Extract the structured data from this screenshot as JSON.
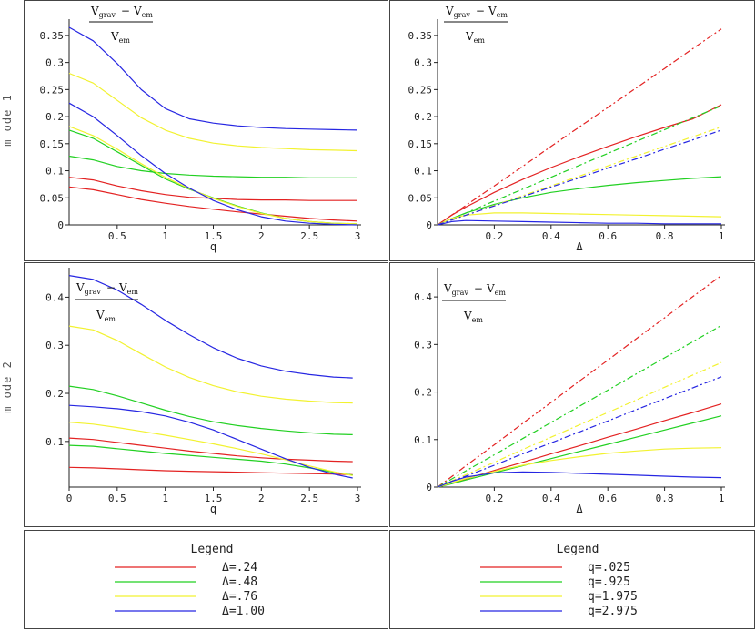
{
  "colors": {
    "d024": "#e32222",
    "d048": "#22d022",
    "d076": "#f2f230",
    "d100": "#2626e2"
  },
  "row_labels": [
    "m ode 1",
    "m ode 2"
  ],
  "ratio_label": {
    "num_a": "V",
    "num_a_sub": "grav",
    "minus": "−",
    "num_b": "V",
    "num_b_sub": "em",
    "den": "V",
    "den_sub": "em"
  },
  "chart_data": [
    {
      "id": "mode1-q",
      "type": "line",
      "title": "",
      "xlabel": "q",
      "ylabel": "(Vgrav − Vem)/Vem",
      "xlim": [
        0,
        3
      ],
      "ylim": [
        0,
        0.37
      ],
      "xticks": [
        0.5,
        1,
        1.5,
        2,
        2.5,
        3
      ],
      "xtick_labels": [
        "0.5",
        "1",
        "1.5",
        "2",
        "2.5",
        "3"
      ],
      "yticks": [
        0,
        0.05,
        0.1,
        0.15,
        0.2,
        0.25,
        0.3,
        0.35
      ],
      "ytick_labels": [
        "0",
        "0.05",
        "0.1",
        "0.15",
        "0.2",
        "0.25",
        "0.3",
        "0.35"
      ],
      "x": [
        0,
        0.25,
        0.5,
        0.75,
        1,
        1.25,
        1.5,
        1.75,
        2,
        2.25,
        2.5,
        2.75,
        3
      ],
      "series": [
        {
          "name": "Δ=.24 upper",
          "color_key": "d024",
          "values": [
            0.088,
            0.083,
            0.072,
            0.063,
            0.056,
            0.051,
            0.049,
            0.047,
            0.046,
            0.046,
            0.045,
            0.045,
            0.045
          ]
        },
        {
          "name": "Δ=.24 lower",
          "color_key": "d024",
          "values": [
            0.07,
            0.065,
            0.056,
            0.047,
            0.04,
            0.034,
            0.029,
            0.024,
            0.02,
            0.016,
            0.012,
            0.009,
            0.007
          ]
        },
        {
          "name": "Δ=.48 upper",
          "color_key": "d048",
          "values": [
            0.127,
            0.12,
            0.108,
            0.1,
            0.095,
            0.092,
            0.09,
            0.089,
            0.088,
            0.088,
            0.087,
            0.087,
            0.087
          ]
        },
        {
          "name": "Δ=.48 lower",
          "color_key": "d048",
          "values": [
            0.175,
            0.16,
            0.135,
            0.11,
            0.085,
            0.066,
            0.05,
            0.035,
            0.022,
            0.012,
            0.006,
            0.003,
            0.002
          ]
        },
        {
          "name": "Δ=.76 upper",
          "color_key": "d076",
          "values": [
            0.28,
            0.262,
            0.23,
            0.198,
            0.175,
            0.16,
            0.151,
            0.146,
            0.143,
            0.141,
            0.139,
            0.138,
            0.137
          ]
        },
        {
          "name": "Δ=.76 lower",
          "color_key": "d076",
          "values": [
            0.182,
            0.165,
            0.14,
            0.113,
            0.088,
            0.067,
            0.049,
            0.034,
            0.021,
            0.012,
            0.006,
            0.003,
            0.002
          ]
        },
        {
          "name": "Δ=1.00 upper",
          "color_key": "d100",
          "values": [
            0.365,
            0.34,
            0.298,
            0.25,
            0.215,
            0.196,
            0.188,
            0.183,
            0.18,
            0.178,
            0.177,
            0.176,
            0.175
          ]
        },
        {
          "name": "Δ=1.00 lower",
          "color_key": "d100",
          "values": [
            0.225,
            0.2,
            0.165,
            0.128,
            0.095,
            0.068,
            0.045,
            0.028,
            0.015,
            0.007,
            0.003,
            0.001,
            0
          ]
        }
      ]
    },
    {
      "id": "mode1-delta",
      "type": "line",
      "title": "",
      "xlabel": "Δ",
      "ylabel": "(Vgrav − Vem)/Vem",
      "xlim": [
        0,
        1
      ],
      "ylim": [
        0,
        0.37
      ],
      "xticks": [
        0.2,
        0.4,
        0.6,
        0.8,
        1
      ],
      "xtick_labels": [
        "0.2",
        "0.4",
        "0.6",
        "0.8",
        "1"
      ],
      "yticks": [
        0,
        0.05,
        0.1,
        0.15,
        0.2,
        0.25,
        0.3,
        0.35
      ],
      "ytick_labels": [
        "0",
        "0.05",
        "0.1",
        "0.15",
        "0.2",
        "0.25",
        "0.3",
        "0.35"
      ],
      "x": [
        0,
        0.05,
        0.1,
        0.2,
        0.3,
        0.4,
        0.5,
        0.6,
        0.7,
        0.8,
        0.9,
        1
      ],
      "series": [
        {
          "name": "q=.025 dash",
          "color_key": "d024",
          "dashed": true,
          "values": [
            0,
            0.018,
            0.036,
            0.072,
            0.108,
            0.145,
            0.181,
            0.217,
            0.253,
            0.289,
            0.326,
            0.362
          ]
        },
        {
          "name": "q=.025 solid",
          "color_key": "d024",
          "values": [
            0,
            0.018,
            0.033,
            0.06,
            0.084,
            0.106,
            0.126,
            0.145,
            0.163,
            0.18,
            0.196,
            0.222
          ]
        },
        {
          "name": "q=.925 dash",
          "color_key": "d048",
          "dashed": true,
          "values": [
            0,
            0.011,
            0.022,
            0.044,
            0.066,
            0.088,
            0.11,
            0.132,
            0.154,
            0.176,
            0.198,
            0.22
          ]
        },
        {
          "name": "q=.925 solid",
          "color_key": "d048",
          "values": [
            0,
            0.012,
            0.022,
            0.038,
            0.05,
            0.06,
            0.067,
            0.073,
            0.078,
            0.082,
            0.086,
            0.089
          ]
        },
        {
          "name": "q=1.975 dash",
          "color_key": "d076",
          "dashed": true,
          "values": [
            0,
            0.009,
            0.018,
            0.036,
            0.054,
            0.072,
            0.09,
            0.109,
            0.127,
            0.145,
            0.163,
            0.181
          ]
        },
        {
          "name": "q=1.975 solid",
          "color_key": "d076",
          "values": [
            0,
            0.012,
            0.018,
            0.022,
            0.022,
            0.021,
            0.02,
            0.019,
            0.018,
            0.017,
            0.016,
            0.015
          ]
        },
        {
          "name": "q=2.975 dash",
          "color_key": "d100",
          "dashed": true,
          "values": [
            0,
            0.009,
            0.018,
            0.035,
            0.052,
            0.07,
            0.087,
            0.105,
            0.122,
            0.14,
            0.157,
            0.175
          ]
        },
        {
          "name": "q=2.975 solid",
          "color_key": "d100",
          "values": [
            0,
            0.006,
            0.008,
            0.007,
            0.006,
            0.005,
            0.004,
            0.003,
            0.003,
            0.002,
            0.002,
            0.002
          ]
        }
      ]
    },
    {
      "id": "mode2-q",
      "type": "line",
      "title": "",
      "xlabel": "q",
      "ylabel": "(Vgrav − Vem)/Vem",
      "xlim": [
        0,
        3
      ],
      "ylim": [
        0.005,
        0.45
      ],
      "xticks": [
        0,
        0.5,
        1,
        1.5,
        2,
        2.5,
        3
      ],
      "xtick_labels": [
        "0",
        "0.5",
        "1",
        "1.5",
        "2",
        "2.5",
        "3"
      ],
      "yticks": [
        0.1,
        0.2,
        0.3,
        0.4
      ],
      "ytick_labels": [
        "0.1",
        "0.2",
        "0.3",
        "0.4"
      ],
      "x": [
        0,
        0.25,
        0.5,
        0.75,
        1,
        1.25,
        1.5,
        1.75,
        2,
        2.25,
        2.5,
        2.75,
        2.95
      ],
      "series": [
        {
          "name": "Δ=.24 lower",
          "color_key": "d024",
          "values": [
            0.046,
            0.045,
            0.043,
            0.041,
            0.039,
            0.038,
            0.037,
            0.036,
            0.035,
            0.034,
            0.033,
            0.032,
            0.031
          ]
        },
        {
          "name": "Δ=.24 upper",
          "color_key": "d024",
          "values": [
            0.107,
            0.104,
            0.098,
            0.092,
            0.086,
            0.08,
            0.075,
            0.07,
            0.066,
            0.063,
            0.061,
            0.059,
            0.058
          ]
        },
        {
          "name": "Δ=.48 lower",
          "color_key": "d048",
          "values": [
            0.092,
            0.09,
            0.085,
            0.08,
            0.075,
            0.071,
            0.067,
            0.063,
            0.059,
            0.053,
            0.045,
            0.036,
            0.03
          ]
        },
        {
          "name": "Δ=.48 upper",
          "color_key": "d048",
          "values": [
            0.215,
            0.208,
            0.195,
            0.18,
            0.165,
            0.152,
            0.141,
            0.133,
            0.127,
            0.122,
            0.118,
            0.115,
            0.114
          ]
        },
        {
          "name": "Δ=.76 lower",
          "color_key": "d076",
          "values": [
            0.14,
            0.136,
            0.129,
            0.121,
            0.113,
            0.104,
            0.095,
            0.085,
            0.074,
            0.062,
            0.049,
            0.037,
            0.029
          ]
        },
        {
          "name": "Δ=.76 upper",
          "color_key": "d076",
          "values": [
            0.34,
            0.332,
            0.31,
            0.282,
            0.255,
            0.233,
            0.216,
            0.203,
            0.194,
            0.188,
            0.184,
            0.181,
            0.18
          ]
        },
        {
          "name": "Δ=1.00 lower",
          "color_key": "d100",
          "values": [
            0.175,
            0.172,
            0.168,
            0.162,
            0.153,
            0.14,
            0.124,
            0.104,
            0.084,
            0.064,
            0.046,
            0.032,
            0.024
          ]
        },
        {
          "name": "Δ=1.00 upper",
          "color_key": "d100",
          "values": [
            0.445,
            0.437,
            0.415,
            0.385,
            0.352,
            0.322,
            0.295,
            0.273,
            0.257,
            0.246,
            0.239,
            0.234,
            0.232
          ]
        }
      ]
    },
    {
      "id": "mode2-delta",
      "type": "line",
      "title": "",
      "xlabel": "Δ",
      "ylabel": "(Vgrav − Vem)/Vem",
      "xlim": [
        0,
        1
      ],
      "ylim": [
        0,
        0.45
      ],
      "xticks": [
        0.2,
        0.4,
        0.6,
        0.8,
        1
      ],
      "xtick_labels": [
        "0.2",
        "0.4",
        "0.6",
        "0.8",
        "1"
      ],
      "yticks": [
        0,
        0.1,
        0.2,
        0.3,
        0.4
      ],
      "ytick_labels": [
        "0",
        "0.1",
        "0.2",
        "0.3",
        "0.4"
      ],
      "x": [
        0,
        0.05,
        0.1,
        0.2,
        0.3,
        0.4,
        0.5,
        0.6,
        0.7,
        0.8,
        0.9,
        1
      ],
      "series": [
        {
          "name": "q=.025 dash",
          "color_key": "d024",
          "dashed": true,
          "values": [
            0,
            0.022,
            0.045,
            0.089,
            0.134,
            0.178,
            0.223,
            0.267,
            0.312,
            0.356,
            0.401,
            0.445
          ]
        },
        {
          "name": "q=.025 solid",
          "color_key": "d024",
          "values": [
            0,
            0.008,
            0.017,
            0.035,
            0.052,
            0.07,
            0.087,
            0.105,
            0.122,
            0.14,
            0.157,
            0.175
          ]
        },
        {
          "name": "q=.925 dash",
          "color_key": "d048",
          "dashed": true,
          "values": [
            0,
            0.017,
            0.034,
            0.068,
            0.102,
            0.136,
            0.17,
            0.204,
            0.238,
            0.272,
            0.306,
            0.34
          ]
        },
        {
          "name": "q=.925 solid",
          "color_key": "d048",
          "values": [
            0,
            0.007,
            0.015,
            0.03,
            0.045,
            0.06,
            0.075,
            0.09,
            0.105,
            0.12,
            0.135,
            0.15
          ]
        },
        {
          "name": "q=1.975 dash",
          "color_key": "d076",
          "dashed": true,
          "values": [
            0,
            0.013,
            0.026,
            0.052,
            0.079,
            0.105,
            0.131,
            0.157,
            0.183,
            0.21,
            0.236,
            0.262
          ]
        },
        {
          "name": "q=1.975 solid",
          "color_key": "d076",
          "values": [
            0,
            0.009,
            0.018,
            0.033,
            0.046,
            0.056,
            0.064,
            0.071,
            0.076,
            0.08,
            0.082,
            0.083
          ]
        },
        {
          "name": "q=2.975 dash",
          "color_key": "d100",
          "dashed": true,
          "values": [
            0,
            0.012,
            0.023,
            0.046,
            0.07,
            0.093,
            0.116,
            0.139,
            0.163,
            0.186,
            0.209,
            0.232
          ]
        },
        {
          "name": "q=2.975 solid",
          "color_key": "d100",
          "values": [
            0,
            0.012,
            0.021,
            0.03,
            0.032,
            0.031,
            0.029,
            0.027,
            0.025,
            0.023,
            0.021,
            0.02
          ]
        }
      ]
    }
  ],
  "legends": [
    {
      "title": "Legend",
      "items": [
        {
          "label": "Δ=.24",
          "color_key": "d024"
        },
        {
          "label": "Δ=.48",
          "color_key": "d048"
        },
        {
          "label": "Δ=.76",
          "color_key": "d076"
        },
        {
          "label": "Δ=1.00",
          "color_key": "d100"
        }
      ]
    },
    {
      "title": "Legend",
      "items": [
        {
          "label": "q=.025",
          "color_key": "d024"
        },
        {
          "label": "q=.925",
          "color_key": "d048"
        },
        {
          "label": "q=1.975",
          "color_key": "d076"
        },
        {
          "label": "q=2.975",
          "color_key": "d100"
        }
      ]
    }
  ]
}
